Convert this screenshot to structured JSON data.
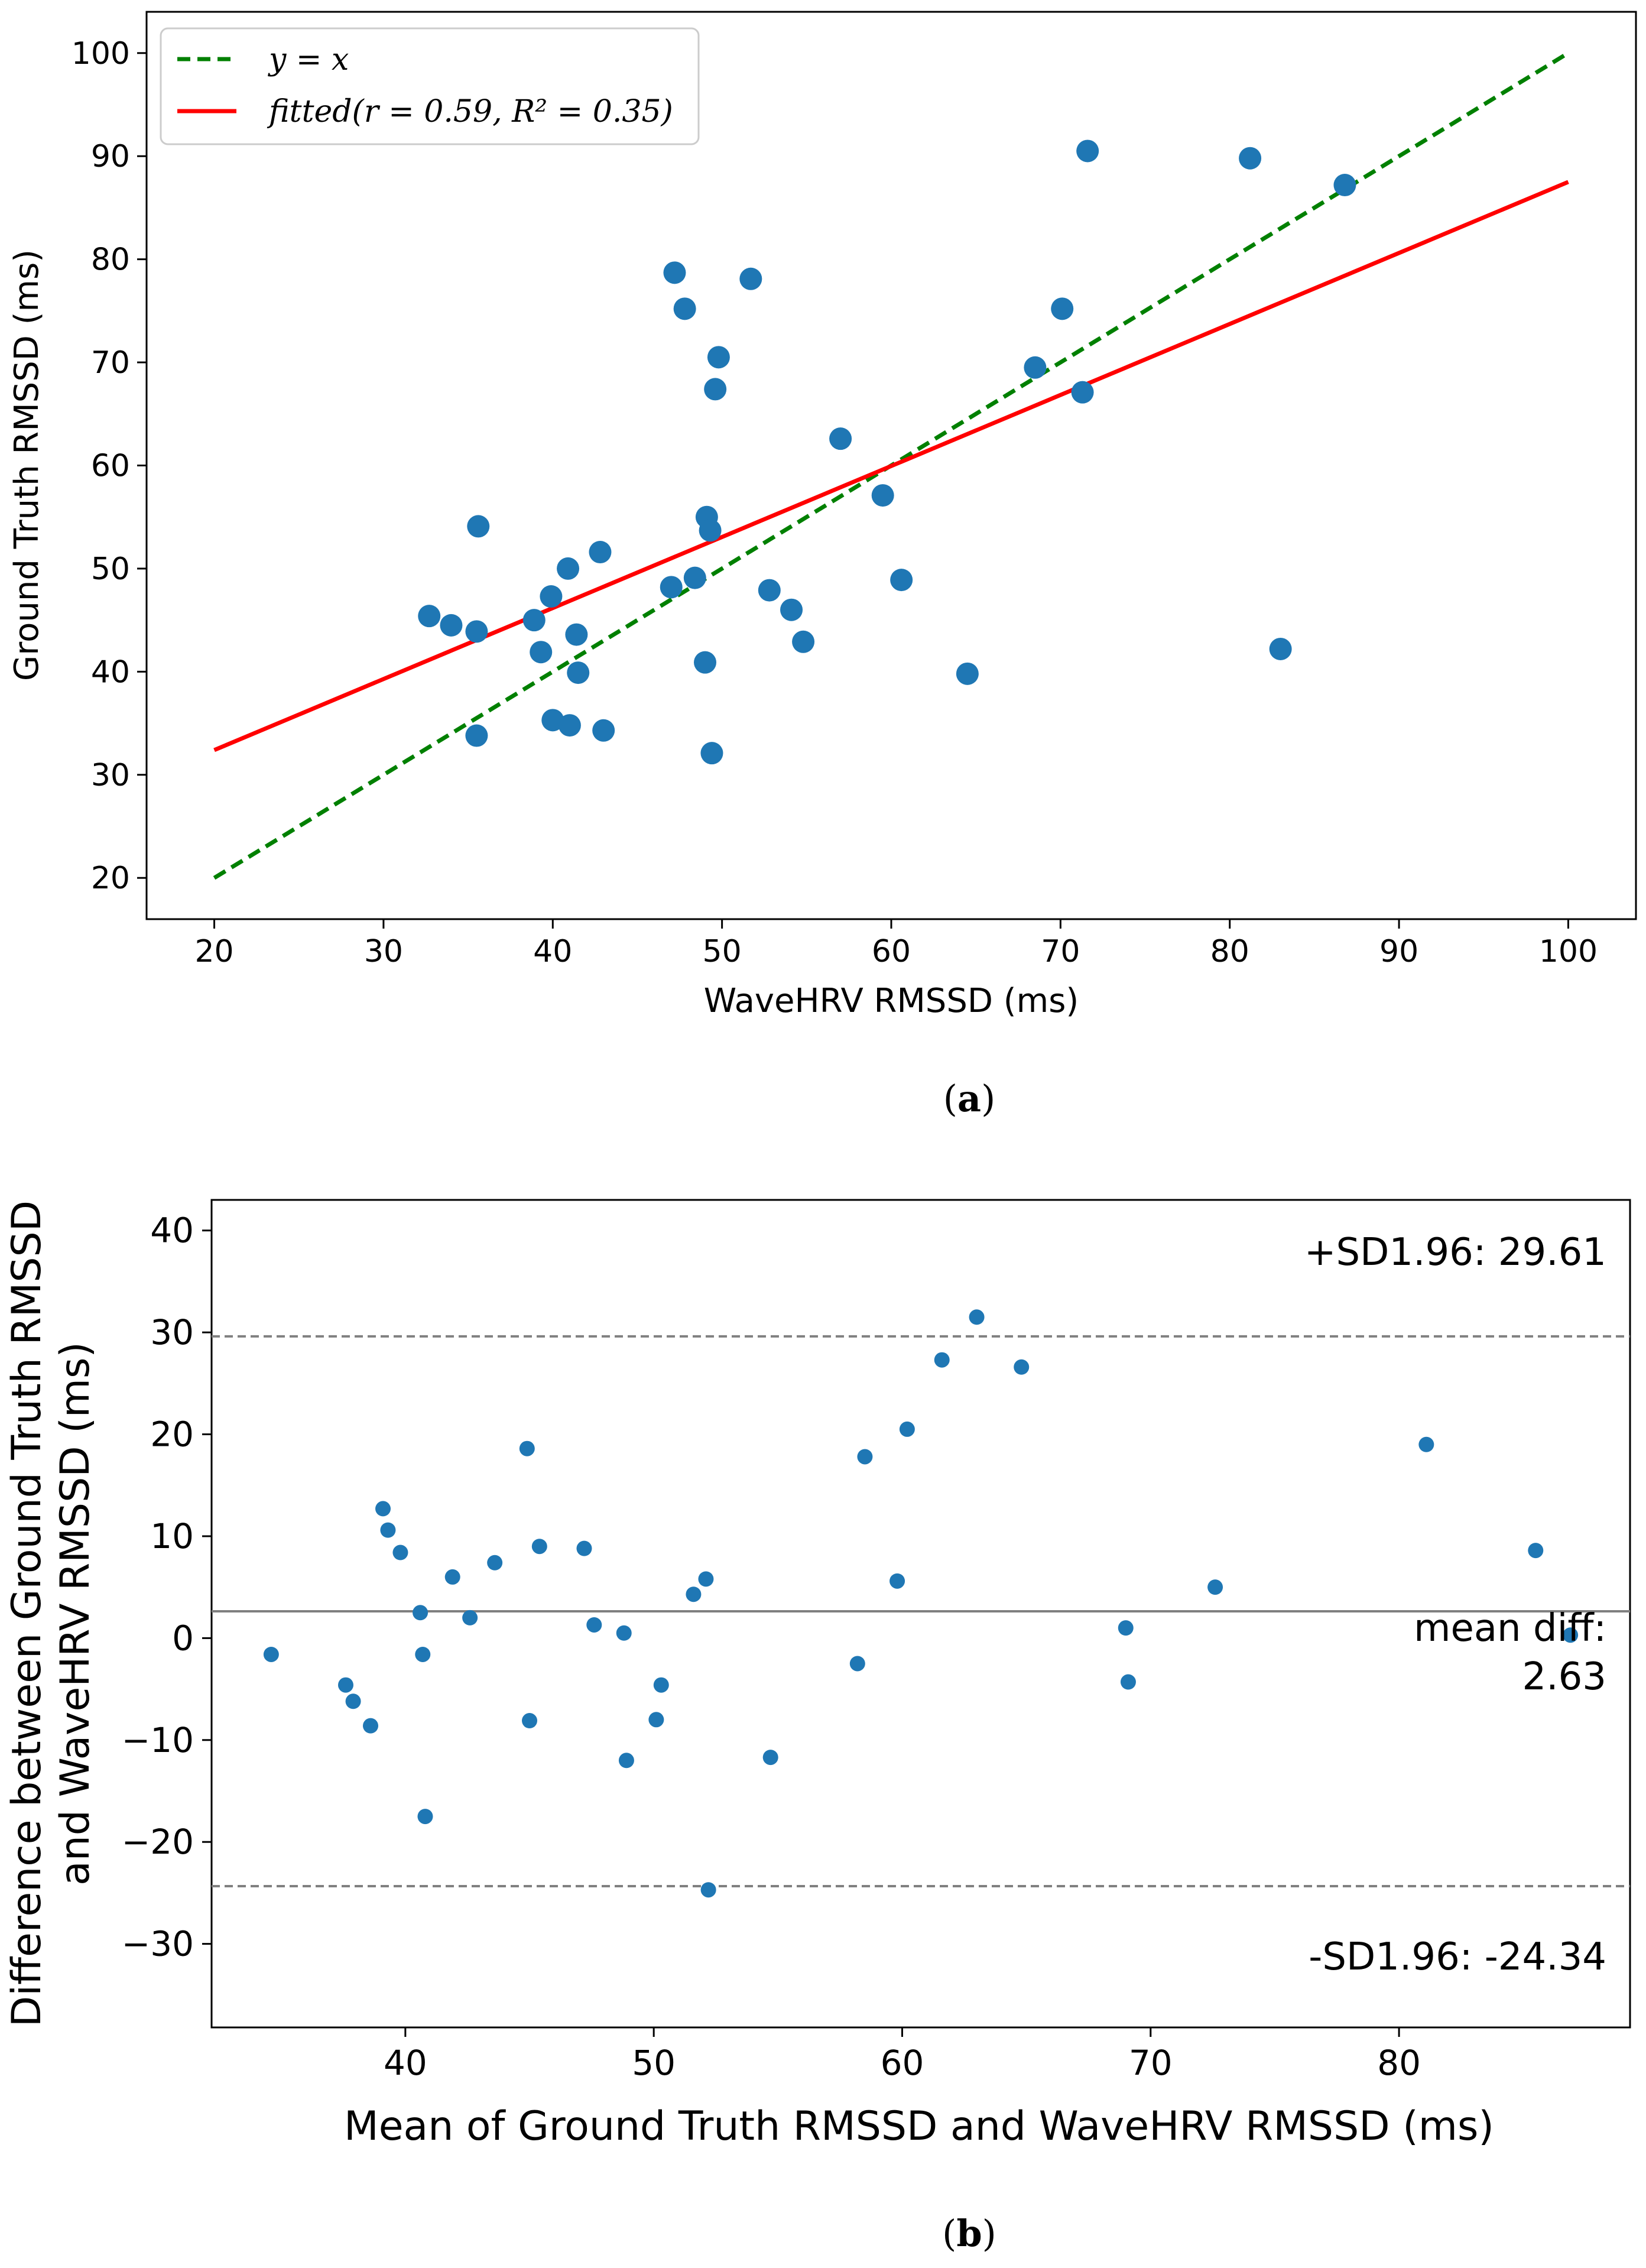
{
  "chart_data": [
    {
      "type": "scatter",
      "panel_label": "(a)",
      "panel_letter": "a",
      "xlabel": "WaveHRV RMSSD (ms)",
      "ylabel": "Ground Truth RMSSD (ms)",
      "xlim": [
        16,
        104
      ],
      "ylim": [
        16,
        104
      ],
      "xticks": [
        20,
        30,
        40,
        50,
        60,
        70,
        80,
        90,
        100
      ],
      "yticks": [
        20,
        30,
        40,
        50,
        60,
        70,
        80,
        90,
        100
      ],
      "grid": false,
      "legend_position": "top-left",
      "lines": [
        {
          "name": "y_eq_x",
          "legend_label": "y = x",
          "style": "dashed",
          "color": "#008000",
          "x": [
            20,
            100
          ],
          "y": [
            20,
            100
          ]
        },
        {
          "name": "fitted",
          "legend_label": "fitted(r = 0.59, R² = 0.35)",
          "style": "solid",
          "color": "#ff0000",
          "x": [
            20,
            100
          ],
          "y": [
            32.4,
            87.5
          ]
        }
      ],
      "series": [
        {
          "name": "points",
          "color": "#1f77b4",
          "x": [
            32.7,
            34.0,
            35.5,
            35.6,
            35.5,
            38.9,
            39.3,
            39.9,
            40.0,
            40.9,
            41.0,
            41.4,
            41.5,
            42.8,
            43.0,
            47.0,
            47.2,
            47.8,
            48.4,
            49.0,
            49.1,
            49.3,
            49.4,
            49.6,
            49.8,
            51.7,
            52.8,
            54.1,
            54.8,
            57.0,
            59.5,
            60.6,
            64.5,
            68.5,
            70.1,
            71.3,
            71.6,
            81.2,
            83.0,
            86.8
          ],
          "y": [
            45.4,
            44.5,
            43.9,
            54.1,
            33.8,
            45.0,
            41.9,
            47.3,
            35.3,
            50.0,
            34.8,
            43.6,
            39.9,
            51.6,
            34.3,
            48.2,
            78.7,
            75.2,
            49.1,
            40.9,
            55.0,
            53.7,
            32.1,
            67.4,
            70.5,
            78.1,
            47.9,
            46.0,
            42.9,
            62.6,
            57.1,
            48.9,
            39.8,
            69.5,
            75.2,
            67.1,
            90.5,
            89.8,
            42.2,
            87.2
          ]
        }
      ]
    },
    {
      "type": "scatter",
      "panel_label": "(b)",
      "panel_letter": "b",
      "xlabel": "Mean of Ground Truth RMSSD and WaveHRV RMSSD (ms)",
      "ylabel_line1": "Difference between Ground Truth RMSSD",
      "ylabel_line2": "and WaveHRV RMSSD (ms)",
      "xlim": [
        32.2,
        89.3
      ],
      "ylim": [
        -38.2,
        43.0
      ],
      "xticks": [
        40,
        50,
        60,
        70,
        80
      ],
      "yticks": [
        -30,
        -20,
        -10,
        0,
        10,
        20,
        30,
        40
      ],
      "grid": false,
      "hlines": [
        {
          "name": "upper-limit",
          "value": 29.61,
          "style": "dashed",
          "color": "#808080",
          "label": "+SD1.96: 29.61"
        },
        {
          "name": "mean-diff",
          "value": 2.63,
          "style": "solid",
          "color": "#808080",
          "label_line1": "mean diff:",
          "label_line2": "2.63"
        },
        {
          "name": "lower-limit",
          "value": -24.34,
          "style": "dashed",
          "color": "#808080",
          "label": "-SD1.96: -24.34"
        }
      ],
      "series": [
        {
          "name": "points",
          "color": "#1f77b4",
          "x": [
            34.6,
            37.6,
            37.9,
            38.6,
            39.1,
            39.3,
            39.8,
            40.6,
            40.7,
            40.8,
            41.9,
            42.6,
            43.6,
            44.9,
            45.0,
            45.4,
            47.2,
            47.6,
            48.8,
            48.9,
            50.1,
            50.3,
            51.6,
            52.1,
            52.2,
            54.7,
            58.2,
            58.5,
            59.8,
            60.2,
            61.6,
            63.0,
            64.8,
            69.0,
            69.1,
            72.6,
            81.1,
            85.5,
            86.9
          ],
          "y": [
            -1.6,
            -4.6,
            -6.2,
            -8.6,
            12.7,
            10.6,
            8.4,
            2.5,
            -1.6,
            -17.5,
            6.0,
            2.0,
            7.4,
            18.6,
            -8.1,
            9.0,
            8.8,
            1.3,
            0.5,
            -12.0,
            -8.0,
            -4.6,
            4.3,
            5.8,
            -24.7,
            -11.7,
            -2.5,
            17.8,
            5.6,
            20.5,
            27.3,
            31.5,
            26.6,
            1.0,
            -4.3,
            5.0,
            19.0,
            8.6,
            0.3
          ]
        }
      ]
    }
  ]
}
